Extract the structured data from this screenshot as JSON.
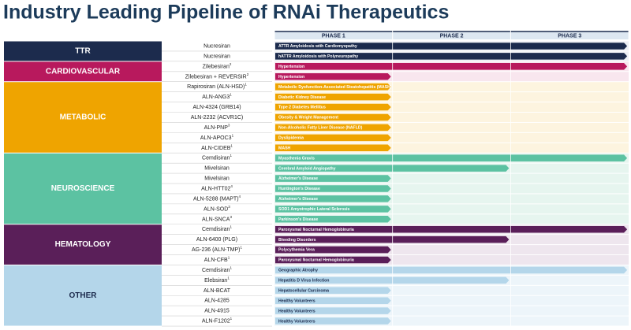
{
  "title": "Industry Leading Pipeline of RNAi Therapeutics",
  "phases": [
    "PHASE 1",
    "PHASE 2",
    "PHASE 3"
  ],
  "groups": [
    {
      "name": "TTR",
      "color": "#1c2b4d",
      "tint": "#eceef3",
      "text_color": "#ffffff",
      "rows": [
        {
          "drug": "Nucresiran",
          "indication": "ATTR Amyloidosis with Cardiomyopathy",
          "progress": 3
        },
        {
          "drug": "Nucresiran",
          "indication": "hATTR Amyloidosis with Polyneuropathy",
          "progress": 3
        }
      ]
    },
    {
      "name": "CARDIOVASCULAR",
      "color": "#b8195d",
      "tint": "#f8e6ee",
      "text_color": "#ffffff",
      "rows": [
        {
          "drug": "Zilebesiran",
          "note": "2",
          "indication": "Hypertension",
          "progress": 3
        },
        {
          "drug": "Zilebesiran + REVERSIR",
          "note": "2",
          "indication": "Hypertension",
          "progress": 1
        }
      ]
    },
    {
      "name": "METABOLIC",
      "color": "#efa400",
      "tint": "#fdf4df",
      "text_color": "#ffffff",
      "rows": [
        {
          "drug": "Rapirosiran (ALN-HSD)",
          "note": "1",
          "indication": "Metabolic Dysfunction-Associated Steatohepatitis (MASH)",
          "progress": 1
        },
        {
          "drug": "ALN-ANG3",
          "note": "1",
          "indication": "Diabetic Kidney Disease",
          "progress": 1
        },
        {
          "drug": "ALN-4324 (GRB14)",
          "indication": "Type 2 Diabetes Mellitus",
          "progress": 1
        },
        {
          "drug": "ALN-2232 (ACVR1C)",
          "indication": "Obesity & Weight Management",
          "progress": 1
        },
        {
          "drug": "ALN-PNP",
          "note": "3",
          "indication": "Non-Alcoholic Fatty Liver Disease (NAFLD)",
          "progress": 1
        },
        {
          "drug": "ALN-APOC3",
          "note": "1",
          "indication": "Dyslipidemia",
          "progress": 1
        },
        {
          "drug": "ALN-CIDEB",
          "note": "1",
          "indication": "MASH",
          "progress": 1
        }
      ]
    },
    {
      "name": "NEUROSCIENCE",
      "color": "#5cc2a2",
      "tint": "#e6f5ef",
      "text_color": "#ffffff",
      "rows": [
        {
          "drug": "Cemdisiran",
          "note": "1",
          "indication": "Myasthenia Gravis",
          "progress": 3
        },
        {
          "drug": "Mivelsiran",
          "indication": "Cerebral Amyloid Angiopathy",
          "progress": 2
        },
        {
          "drug": "Mivelsiran",
          "indication": "Alzheimer's Disease",
          "progress": 1
        },
        {
          "drug": "ALN-HTT02",
          "note": "4",
          "indication": "Huntington's Disease",
          "progress": 1
        },
        {
          "drug": "ALN-5288 (MAPT)",
          "note": "4",
          "indication": "Alzheimer's Disease",
          "progress": 1
        },
        {
          "drug": "ALN-SOD",
          "note": "3",
          "indication": "SOD1 Amyotrophic Lateral Sclerosis",
          "progress": 1
        },
        {
          "drug": "ALN-SNCA",
          "note": "3",
          "indication": "Parkinson's Disease",
          "progress": 1
        }
      ]
    },
    {
      "name": "HEMATOLOGY",
      "color": "#5a1f59",
      "tint": "#eee6ee",
      "text_color": "#ffffff",
      "rows": [
        {
          "drug": "Cemdisiran",
          "note": "1",
          "indication": "Paroxysmal Nocturnal Hemoglobinuria",
          "progress": 3
        },
        {
          "drug": "ALN-6400 (PLG)",
          "indication": "Bleeding Disorders",
          "progress": 2
        },
        {
          "drug": "AG-236 (ALN-TMP)",
          "note": "1",
          "indication": "Polycythemia Vera",
          "progress": 1
        },
        {
          "drug": "ALN-CFB",
          "note": "1",
          "indication": "Paroxysmal Nocturnal Hemoglobinuria",
          "progress": 1
        }
      ]
    },
    {
      "name": "OTHER",
      "color": "#b4d6ea",
      "tint": "#edf5fa",
      "text_color": "#1c2b4d",
      "rows": [
        {
          "drug": "Cemdisiran",
          "note": "1",
          "indication": "Geographic Atrophy",
          "progress": 3
        },
        {
          "drug": "Elebsiran",
          "note": "1",
          "indication": "Hepatitis D Virus Infection",
          "progress": 2
        },
        {
          "drug": "ALN-BCAT",
          "indication": "Hepatocellular Carcinoma",
          "progress": 1
        },
        {
          "drug": "ALN-4285",
          "indication": "Healthy Volunteers",
          "progress": 1
        },
        {
          "drug": "ALN-4915",
          "indication": "Healthy Volunteers",
          "progress": 1
        },
        {
          "drug": "ALN-F1202",
          "note": "1",
          "indication": "Healthy Volunteers",
          "progress": 1
        }
      ]
    }
  ]
}
